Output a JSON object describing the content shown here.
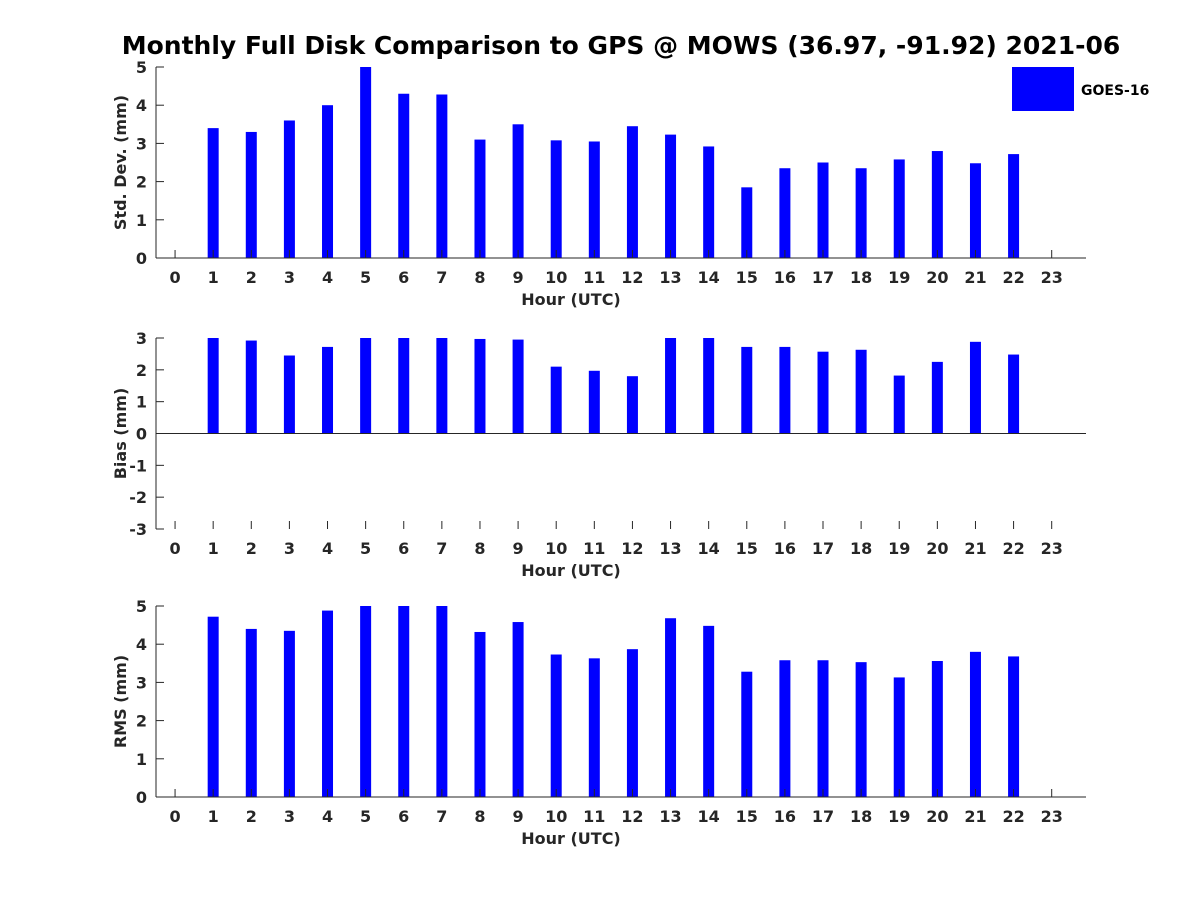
{
  "title": "Monthly Full Disk Comparison to GPS @ MOWS (36.97, -91.92) 2021-06",
  "legend": {
    "label": "GOES-16",
    "placement": "top-right"
  },
  "colors": {
    "bar": "#0000ff",
    "axis": "#262626"
  },
  "chart_data": [
    {
      "type": "bar",
      "title": "",
      "xlabel": "Hour (UTC)",
      "ylabel": "Std. Dev. (mm)",
      "ylim": [
        0,
        5
      ],
      "yticks": [
        0,
        1,
        2,
        3,
        4,
        5
      ],
      "xlim": [
        -0.5,
        23.9
      ],
      "categories": [
        "0",
        "1",
        "2",
        "3",
        "4",
        "5",
        "6",
        "7",
        "8",
        "9",
        "10",
        "11",
        "12",
        "13",
        "14",
        "15",
        "16",
        "17",
        "18",
        "19",
        "20",
        "21",
        "22",
        "23"
      ],
      "series": [
        {
          "name": "GOES-16",
          "values": [
            null,
            3.4,
            3.3,
            3.6,
            4.0,
            5.0,
            4.3,
            4.28,
            3.1,
            3.5,
            3.08,
            3.05,
            3.45,
            3.23,
            2.92,
            1.85,
            2.35,
            2.5,
            2.35,
            2.58,
            2.8,
            2.48,
            2.72,
            null
          ]
        }
      ]
    },
    {
      "type": "bar",
      "title": "",
      "xlabel": "Hour (UTC)",
      "ylabel": "Bias (mm)",
      "ylim": [
        -3,
        3
      ],
      "yticks": [
        -3,
        -2,
        -1,
        0,
        1,
        2,
        3
      ],
      "xlim": [
        -0.5,
        23.9
      ],
      "categories": [
        "0",
        "1",
        "2",
        "3",
        "4",
        "5",
        "6",
        "7",
        "8",
        "9",
        "10",
        "11",
        "12",
        "13",
        "14",
        "15",
        "16",
        "17",
        "18",
        "19",
        "20",
        "21",
        "22",
        "23"
      ],
      "series": [
        {
          "name": "GOES-16",
          "values": [
            null,
            3.0,
            2.92,
            2.45,
            2.72,
            3.0,
            3.0,
            3.0,
            2.97,
            2.95,
            2.1,
            1.97,
            1.8,
            3.0,
            3.0,
            2.72,
            2.72,
            2.57,
            2.63,
            1.82,
            2.25,
            2.88,
            2.48,
            null
          ]
        }
      ]
    },
    {
      "type": "bar",
      "title": "",
      "xlabel": "Hour (UTC)",
      "ylabel": "RMS (mm)",
      "ylim": [
        0,
        5
      ],
      "yticks": [
        0,
        1,
        2,
        3,
        4,
        5
      ],
      "xlim": [
        -0.5,
        23.9
      ],
      "categories": [
        "0",
        "1",
        "2",
        "3",
        "4",
        "5",
        "6",
        "7",
        "8",
        "9",
        "10",
        "11",
        "12",
        "13",
        "14",
        "15",
        "16",
        "17",
        "18",
        "19",
        "20",
        "21",
        "22",
        "23"
      ],
      "series": [
        {
          "name": "GOES-16",
          "values": [
            null,
            4.72,
            4.4,
            4.35,
            4.88,
            5.0,
            5.0,
            5.0,
            4.32,
            4.58,
            3.73,
            3.63,
            3.87,
            4.68,
            4.48,
            3.28,
            3.58,
            3.58,
            3.53,
            3.13,
            3.56,
            3.8,
            3.68,
            null
          ]
        }
      ]
    }
  ]
}
